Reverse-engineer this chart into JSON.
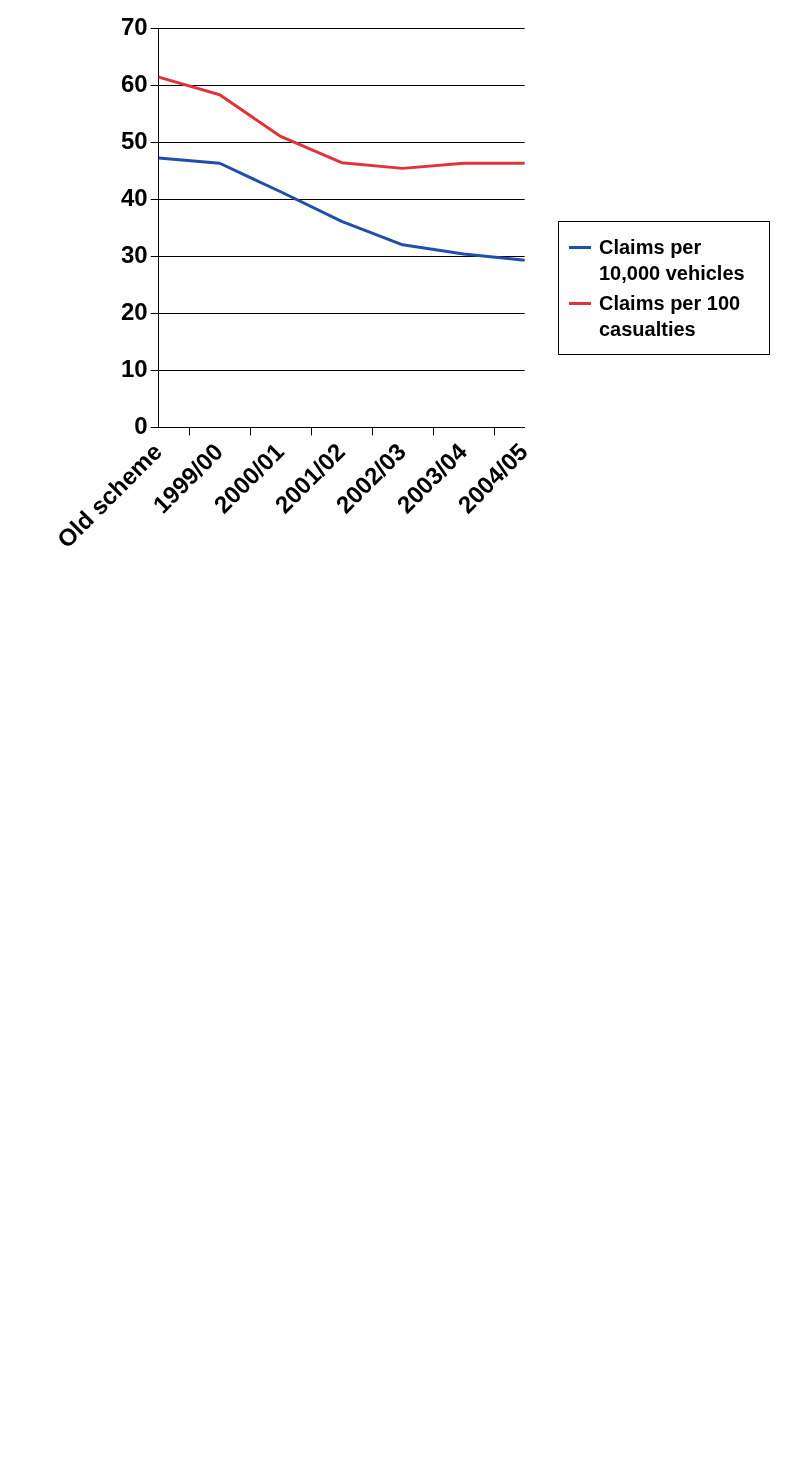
{
  "chart_data": {
    "type": "line",
    "categories": [
      "Old scheme",
      "1999/00",
      "2000/01",
      "2001/02",
      "2002/03",
      "2003/04",
      "2004/05"
    ],
    "series": [
      {
        "name": "Claims per 10,000 vehicles",
        "color": "#1f4fa8",
        "values": [
          47.2,
          46.3,
          41.3,
          36.1,
          32.0,
          30.4,
          29.3
        ]
      },
      {
        "name": "Claims per 100 casualties",
        "color": "#e0343a",
        "values": [
          61.4,
          58.3,
          51.0,
          46.4,
          45.4,
          46.3,
          46.3
        ]
      }
    ],
    "ylim": [
      0,
      70
    ],
    "yticks": [
      0,
      10,
      20,
      30,
      40,
      50,
      60,
      70
    ],
    "grid": "y",
    "legend": "right",
    "marker": "none",
    "line_style": "solid"
  }
}
